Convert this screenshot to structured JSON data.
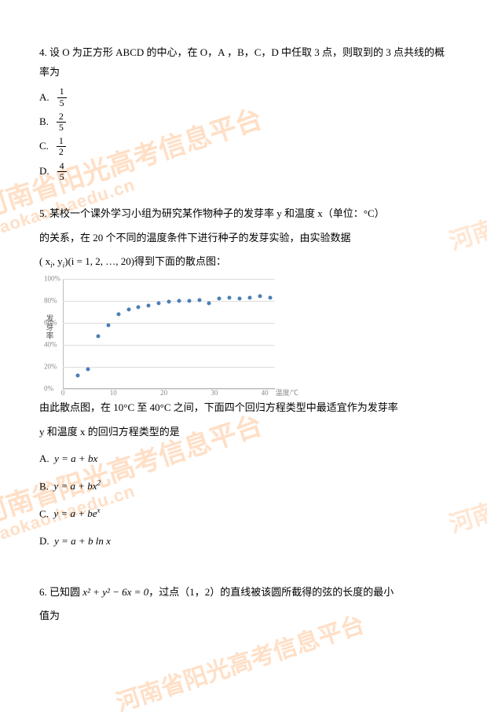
{
  "q4": {
    "text": "4.  设 O 为正方形 ABCD 的中心，在 O，A ，B，C，D 中任取 3 点，则取到的 3 点共线的概率为",
    "options": {
      "A": {
        "num": "1",
        "den": "5"
      },
      "B": {
        "num": "2",
        "den": "5"
      },
      "C": {
        "num": "1",
        "den": "2"
      },
      "D": {
        "num": "4",
        "den": "5"
      }
    }
  },
  "q5": {
    "line1": "5.  某校一个课外学习小组为研究某作物种子的发芽率 y 和温度 x（单位：°C）",
    "line2": "的关系，在 20 个不同的温度条件下进行种子的发芽实验，由实验数据",
    "line3_pre": "( x",
    "line3_mid": ", y",
    "line3_post": ")(i = 1, 2, …, 20)得到下面的散点图：",
    "after1": "由此散点图，在 10°C 至 40°C 之间，下面四个回归方程类型中最适宜作为发芽率",
    "after2": "y 和温度 x 的回归方程类型的是",
    "options": {
      "A": "y = a + bx",
      "B_pre": "y = a + bx",
      "B_sup": "2",
      "C_pre": "y = a + be",
      "C_sup": "x",
      "D": "y = a + b ln x"
    },
    "chart": {
      "ylabel": "发芽率",
      "yticks": [
        "0%",
        "20%",
        "40%",
        "60%",
        "80%",
        "100%"
      ],
      "xticks": [
        "0",
        "10",
        "20",
        "30",
        "40"
      ],
      "xlabel": "温度/℃",
      "ylim": [
        0,
        100
      ],
      "xlim": [
        0,
        42
      ],
      "grid_color": "#ddd",
      "dot_color": "#4a7fb5",
      "points": [
        [
          3,
          12
        ],
        [
          5,
          18
        ],
        [
          7,
          48
        ],
        [
          9,
          58
        ],
        [
          11,
          68
        ],
        [
          13,
          72
        ],
        [
          15,
          74
        ],
        [
          17,
          76
        ],
        [
          19,
          78
        ],
        [
          21,
          79
        ],
        [
          23,
          80
        ],
        [
          25,
          80
        ],
        [
          27,
          81
        ],
        [
          29,
          78
        ],
        [
          31,
          82
        ],
        [
          33,
          83
        ],
        [
          35,
          82
        ],
        [
          37,
          83
        ],
        [
          39,
          84
        ],
        [
          41,
          83
        ]
      ]
    }
  },
  "q6": {
    "pre": "6.  已知圆 ",
    "eq": "x² + y² − 6x = 0",
    "post": "，过点（1，2）的直线被该圆所截得的弦的长度的最小",
    "line2": "值为"
  },
  "watermarks": {
    "main": "河南省阳光高考信息平台",
    "url": "gaokao.haedu.cn",
    "side": "河南省"
  }
}
